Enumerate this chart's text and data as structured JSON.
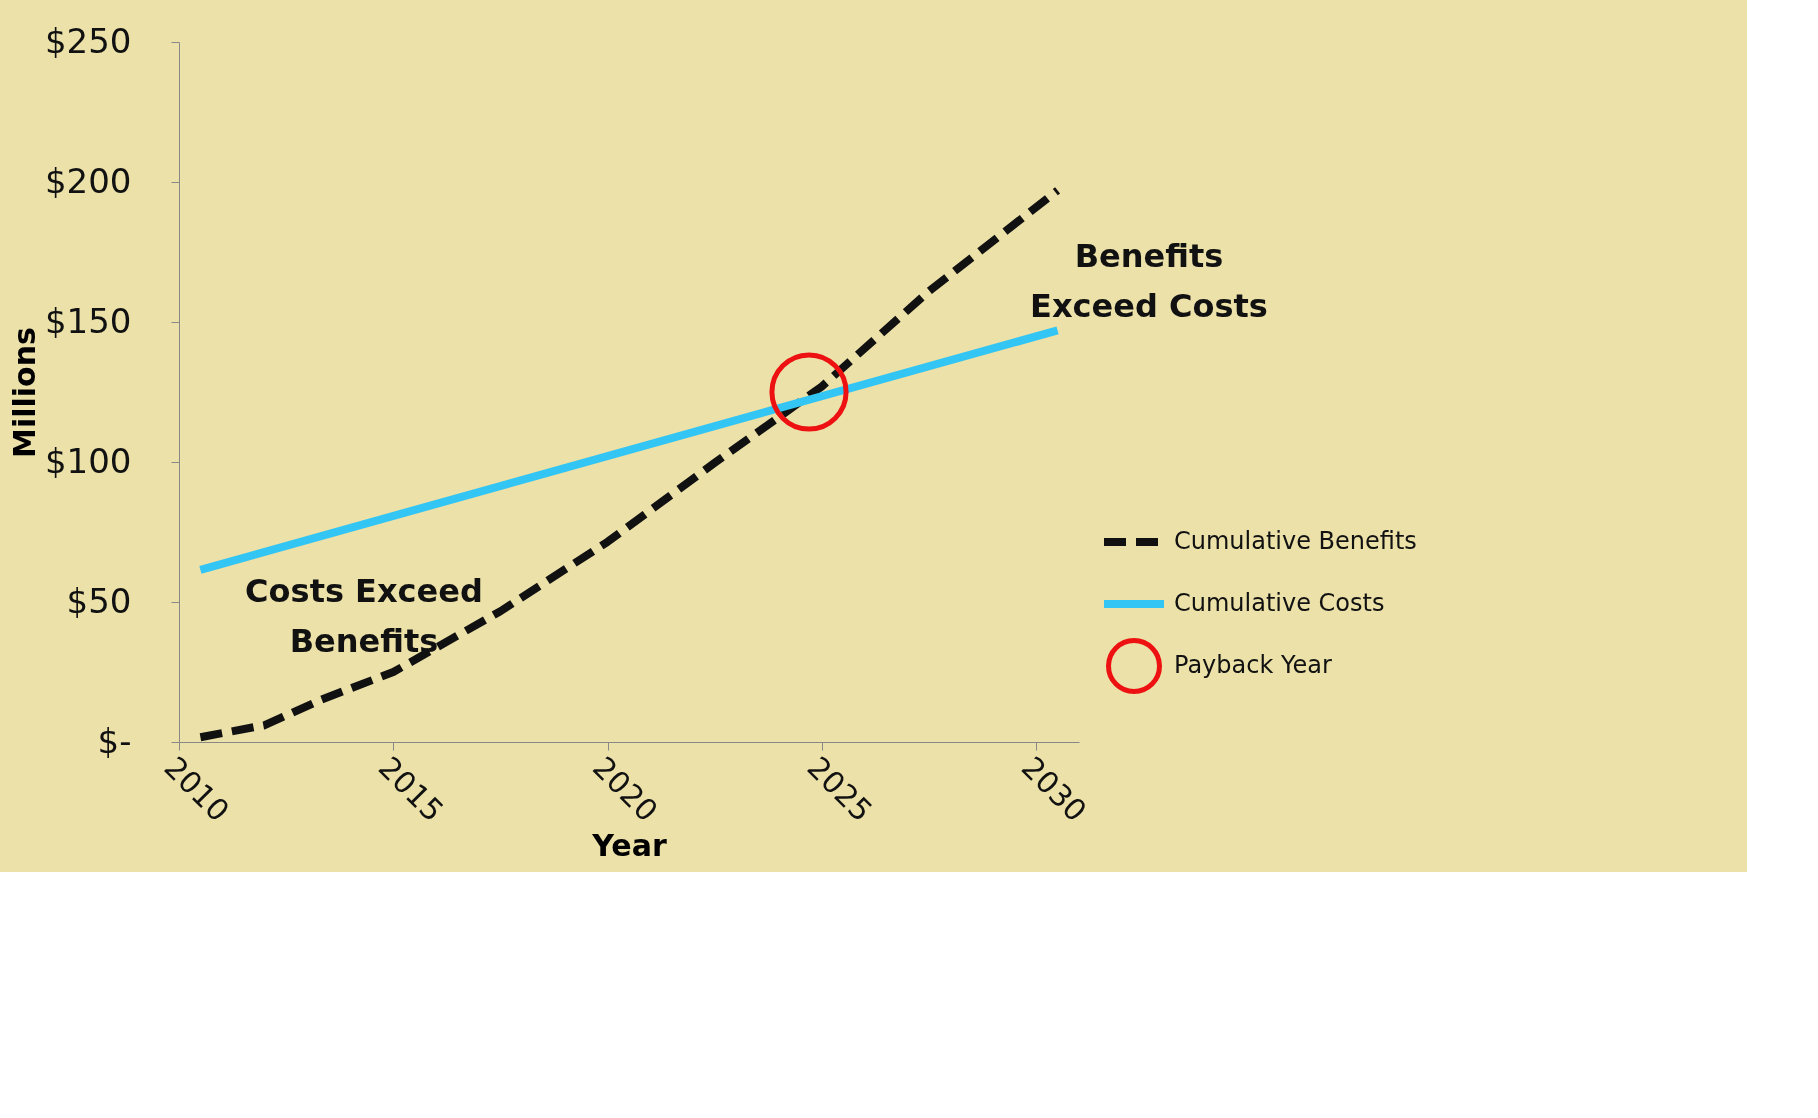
{
  "chart_data": {
    "type": "line",
    "xlabel": "Year",
    "ylabel": "Millions",
    "xlim": [
      2010,
      2031
    ],
    "xticks": [
      2010,
      2015,
      2020,
      2025,
      2030
    ],
    "ylim": [
      0,
      250
    ],
    "yticks": [
      {
        "value": 0,
        "label": "$-"
      },
      {
        "value": 50,
        "label": "$50"
      },
      {
        "value": 100,
        "label": "$100"
      },
      {
        "value": 150,
        "label": "$150"
      },
      {
        "value": 200,
        "label": "$200"
      },
      {
        "value": 250,
        "label": "$250"
      }
    ],
    "grid": false,
    "legend": "right",
    "series": [
      {
        "name": "Cumulative Benefits",
        "color": "#111111",
        "line_style": "dashed",
        "x": [
          2010.5,
          2012,
          2013.3,
          2015,
          2017.5,
          2020,
          2022.5,
          2025,
          2027.5,
          2030.5
        ],
        "values": [
          1.7,
          6,
          15,
          25,
          46.7,
          71.5,
          99.7,
          127,
          161,
          197
        ]
      },
      {
        "name": "Cumulative Costs",
        "color": "#33c5f3",
        "line_style": "solid",
        "x": [
          2010.5,
          2030.5
        ],
        "values": [
          61.5,
          147
        ]
      },
      {
        "name": "Payback Year",
        "type": "scatter",
        "marker": "circle",
        "color": "#ee1111",
        "x": [
          2024.7
        ],
        "values": [
          125
        ]
      }
    ],
    "annotations": [
      "Costs Exceed Benefits",
      "Benefits Exceed Costs"
    ]
  }
}
